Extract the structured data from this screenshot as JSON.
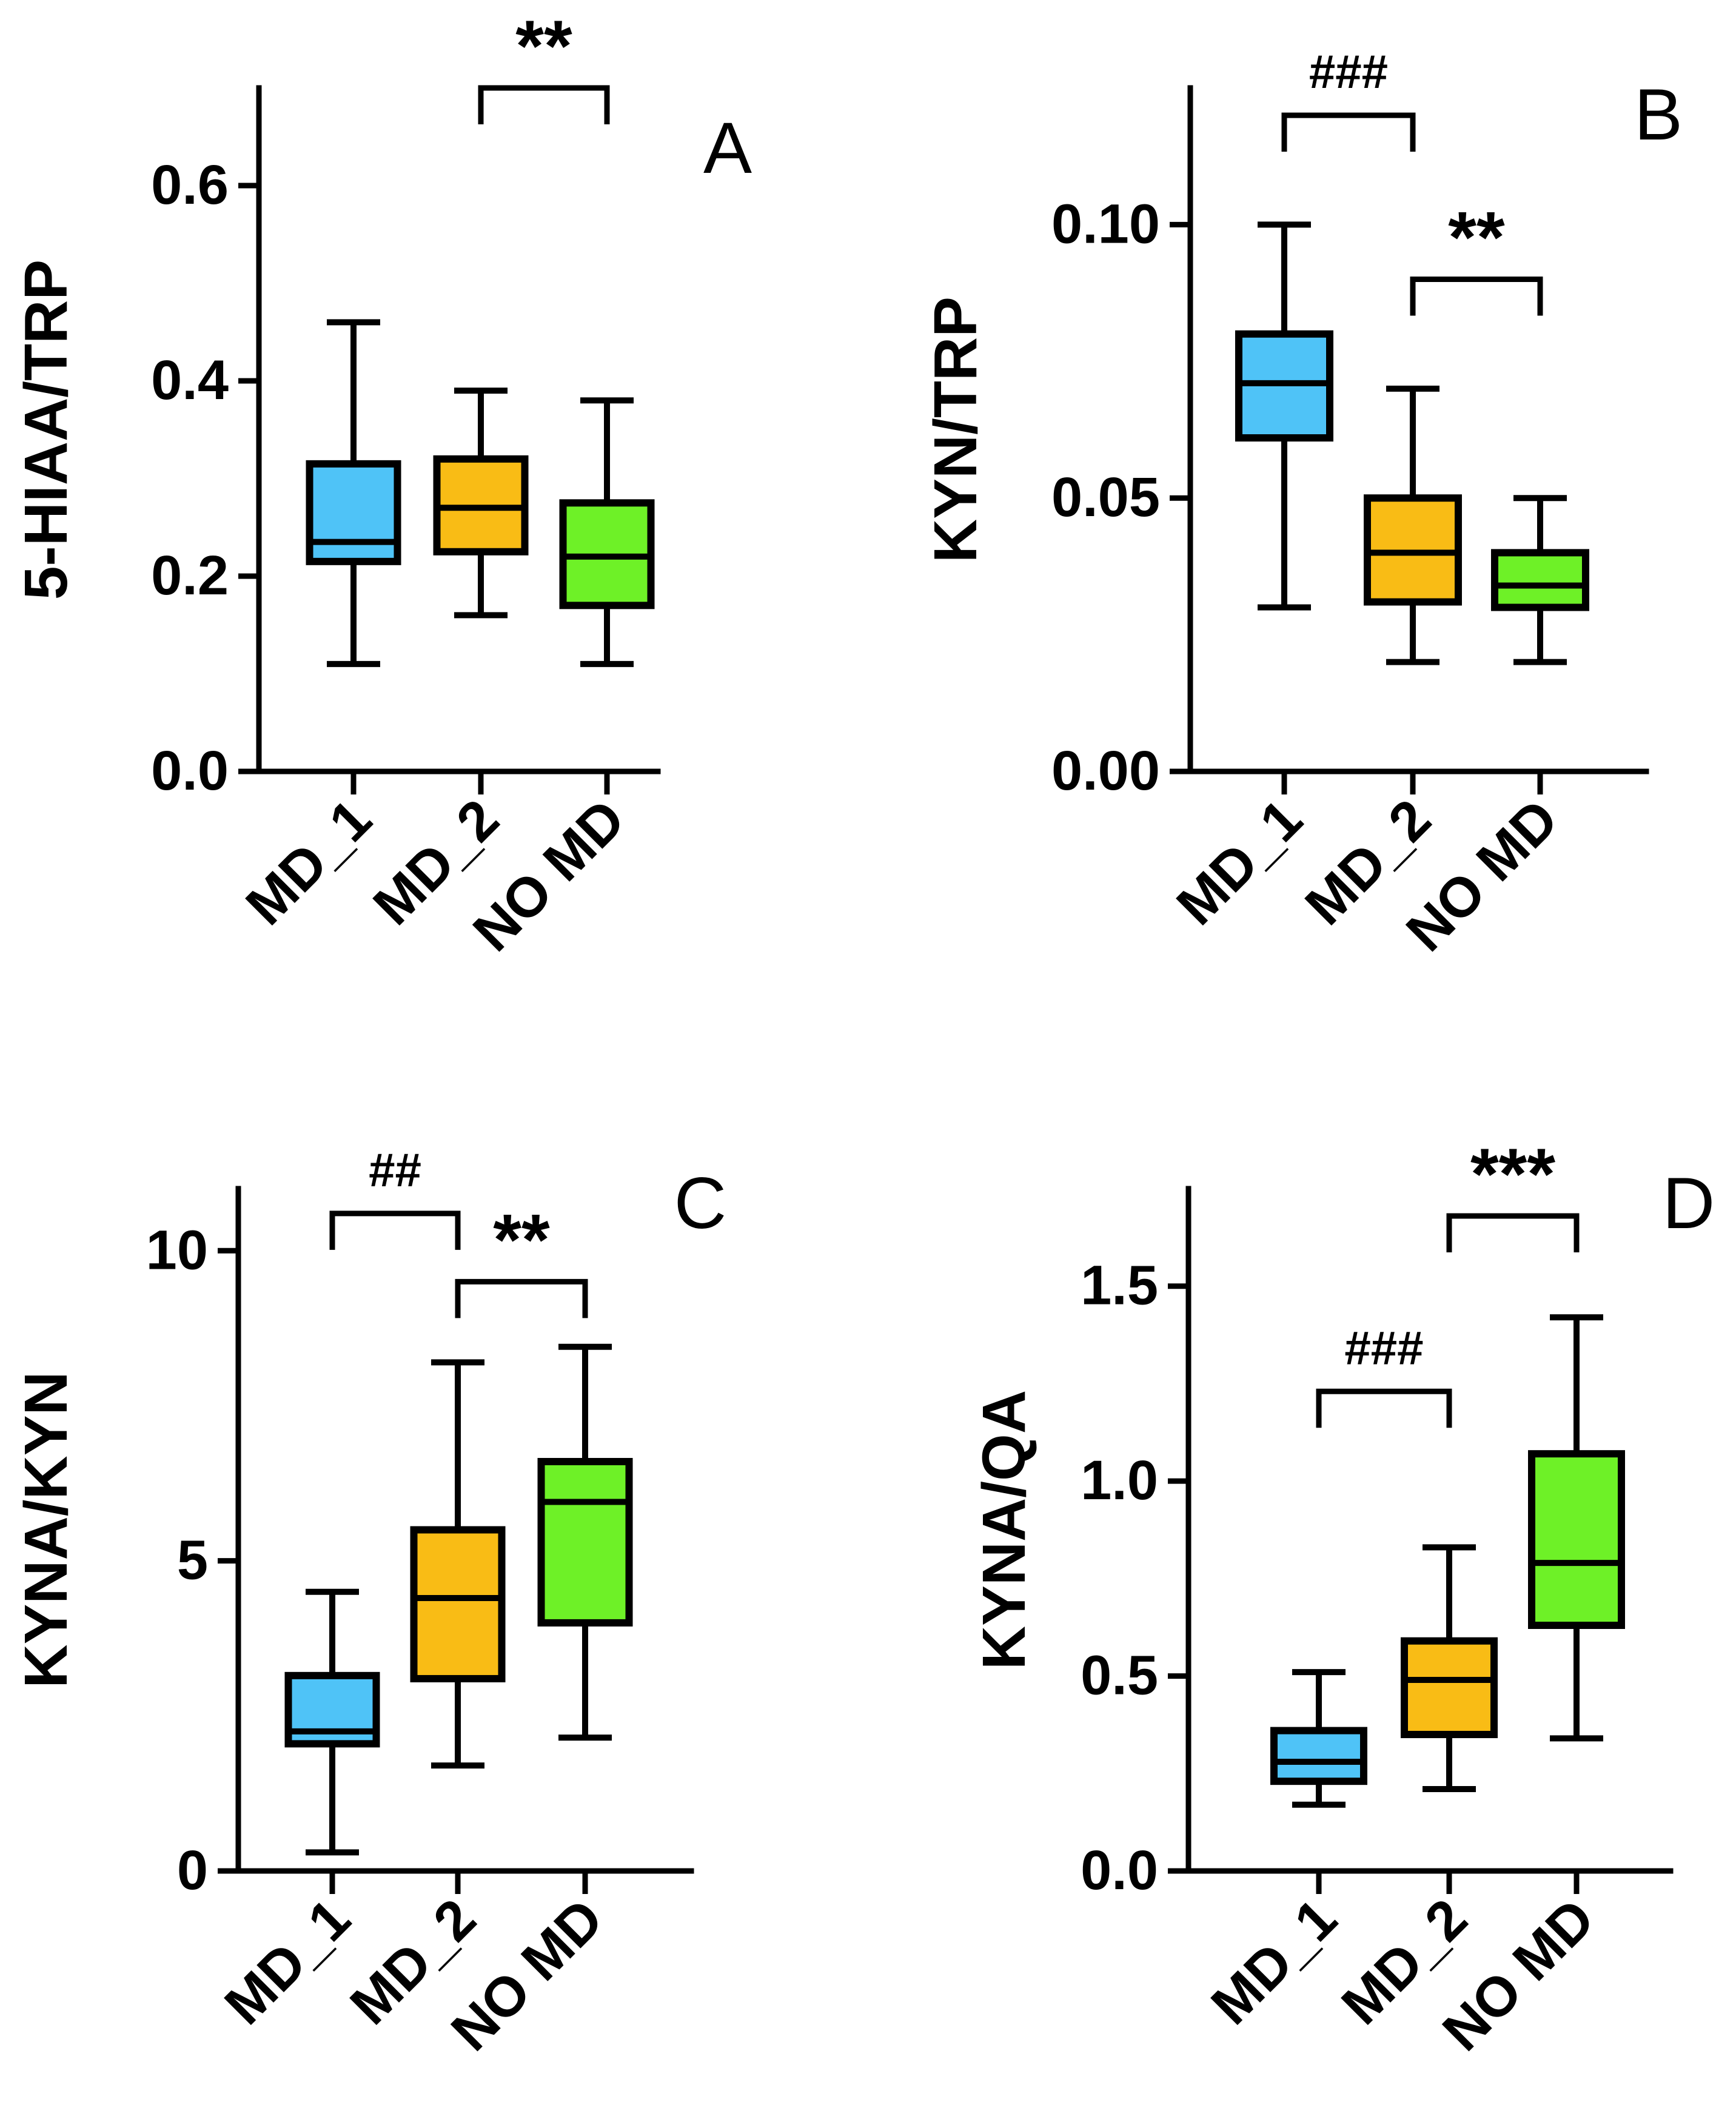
{
  "figure": {
    "panels": [
      "A",
      "B",
      "C",
      "D"
    ]
  },
  "chart_data": [
    {
      "type": "box",
      "panel": "A",
      "ylabel": "5-HIAA/TRP",
      "ylim": [
        0,
        0.7
      ],
      "yticks": [
        0.0,
        0.2,
        0.4,
        0.6
      ],
      "ytick_labels": [
        "0.0",
        "0.2",
        "0.4",
        "0.6"
      ],
      "categories": [
        "MD_1",
        "MD_2",
        "NO MD"
      ],
      "colors": [
        "#4FC3F7",
        "#F9BC15",
        "#6EF127"
      ],
      "boxes": [
        {
          "min": 0.11,
          "q1": 0.215,
          "median": 0.235,
          "q3": 0.315,
          "max": 0.46
        },
        {
          "min": 0.16,
          "q1": 0.225,
          "median": 0.27,
          "q3": 0.32,
          "max": 0.39
        },
        {
          "min": 0.11,
          "q1": 0.17,
          "median": 0.22,
          "q3": 0.275,
          "max": 0.38
        }
      ],
      "annotations": [
        {
          "from": 1,
          "to": 2,
          "level": 0.7,
          "label": "**"
        }
      ]
    },
    {
      "type": "box",
      "panel": "B",
      "ylabel": "KYN/TRP",
      "ylim": [
        0,
        0.125
      ],
      "yticks": [
        0.0,
        0.05,
        0.1
      ],
      "ytick_labels": [
        "0.00",
        "0.05",
        "0.10"
      ],
      "categories": [
        "MD_1",
        "MD_2",
        "NO MD"
      ],
      "colors": [
        "#4FC3F7",
        "#F9BC15",
        "#6EF127"
      ],
      "boxes": [
        {
          "min": 0.03,
          "q1": 0.061,
          "median": 0.071,
          "q3": 0.08,
          "max": 0.1
        },
        {
          "min": 0.02,
          "q1": 0.031,
          "median": 0.04,
          "q3": 0.05,
          "max": 0.07
        },
        {
          "min": 0.02,
          "q1": 0.03,
          "median": 0.034,
          "q3": 0.04,
          "max": 0.05
        }
      ],
      "annotations": [
        {
          "from": 0,
          "to": 1,
          "level": 0.12,
          "label": "###"
        },
        {
          "from": 1,
          "to": 2,
          "level": 0.09,
          "label": "**"
        }
      ]
    },
    {
      "type": "box",
      "panel": "C",
      "ylabel": "KYNA/KYN",
      "ylim": [
        0,
        11
      ],
      "yticks": [
        0,
        5,
        10
      ],
      "ytick_labels": [
        "0",
        "5",
        "10"
      ],
      "categories": [
        "MD_1",
        "MD_2",
        "NO MD"
      ],
      "colors": [
        "#4FC3F7",
        "#F9BC15",
        "#6EF127"
      ],
      "boxes": [
        {
          "min": 0.3,
          "q1": 2.05,
          "median": 2.25,
          "q3": 3.15,
          "max": 4.5
        },
        {
          "min": 1.7,
          "q1": 3.1,
          "median": 4.4,
          "q3": 5.5,
          "max": 8.2
        },
        {
          "min": 2.15,
          "q1": 4.0,
          "median": 5.95,
          "q3": 6.6,
          "max": 8.45
        }
      ],
      "annotations": [
        {
          "from": 0,
          "to": 1,
          "level": 10.6,
          "label": "##"
        },
        {
          "from": 1,
          "to": 2,
          "level": 9.5,
          "label": "**"
        }
      ]
    },
    {
      "type": "box",
      "panel": "D",
      "ylabel": "KYNA/QA",
      "ylim": [
        0,
        1.75
      ],
      "yticks": [
        0.0,
        0.5,
        1.0,
        1.5
      ],
      "ytick_labels": [
        "0.0",
        "0.5",
        "1.0",
        "1.5"
      ],
      "categories": [
        "MD_1",
        "MD_2",
        "NO MD"
      ],
      "colors": [
        "#4FC3F7",
        "#F9BC15",
        "#6EF127"
      ],
      "boxes": [
        {
          "min": 0.17,
          "q1": 0.23,
          "median": 0.28,
          "q3": 0.36,
          "max": 0.51
        },
        {
          "min": 0.21,
          "q1": 0.35,
          "median": 0.49,
          "q3": 0.59,
          "max": 0.83
        },
        {
          "min": 0.34,
          "q1": 0.63,
          "median": 0.79,
          "q3": 1.07,
          "max": 1.42
        }
      ],
      "annotations": [
        {
          "from": 1,
          "to": 2,
          "level": 1.68,
          "label": "***"
        },
        {
          "from": 0,
          "to": 1,
          "level": 1.23,
          "label": "###"
        }
      ]
    }
  ]
}
